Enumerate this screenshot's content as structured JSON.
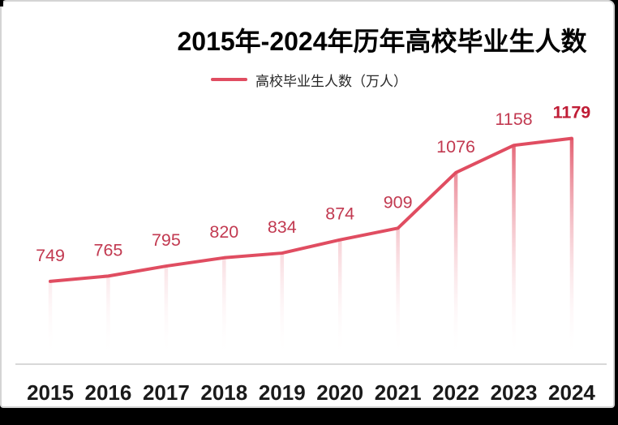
{
  "window": {
    "bottom_bar": "window-edge",
    "corner_mark": "window-corner"
  },
  "chart_data": {
    "type": "line",
    "title": "2015年-2024年历年高校毕业生人数",
    "legend_entries": [
      "高校毕业生人数（万人）"
    ],
    "legend_position": "top",
    "categories": [
      "2015",
      "2016",
      "2017",
      "2018",
      "2019",
      "2020",
      "2021",
      "2022",
      "2023",
      "2024"
    ],
    "series": [
      {
        "name": "高校毕业生人数（万人）",
        "values": [
          749,
          765,
          795,
          820,
          834,
          874,
          909,
          1076,
          1158,
          1179
        ]
      }
    ],
    "data_labels": [
      "749",
      "765",
      "795",
      "820",
      "834",
      "874",
      "909",
      "1076",
      "1158",
      "1179"
    ],
    "emphasize_last_label": true,
    "xlabel": "",
    "ylabel": "",
    "ylim": [
      500,
      1200
    ],
    "grid": false,
    "y_axis_visible": false,
    "style": {
      "line_color": "#e04d61",
      "drop_line_top_color": "#e04d61",
      "drop_line_bottom_color": "#ffffff",
      "data_label_color": "#c23a51",
      "last_label_color": "#c01d36",
      "axis_line_color": "#d8d8d8",
      "x_label_color": "#1a1a1a",
      "title_color": "#000000"
    }
  }
}
